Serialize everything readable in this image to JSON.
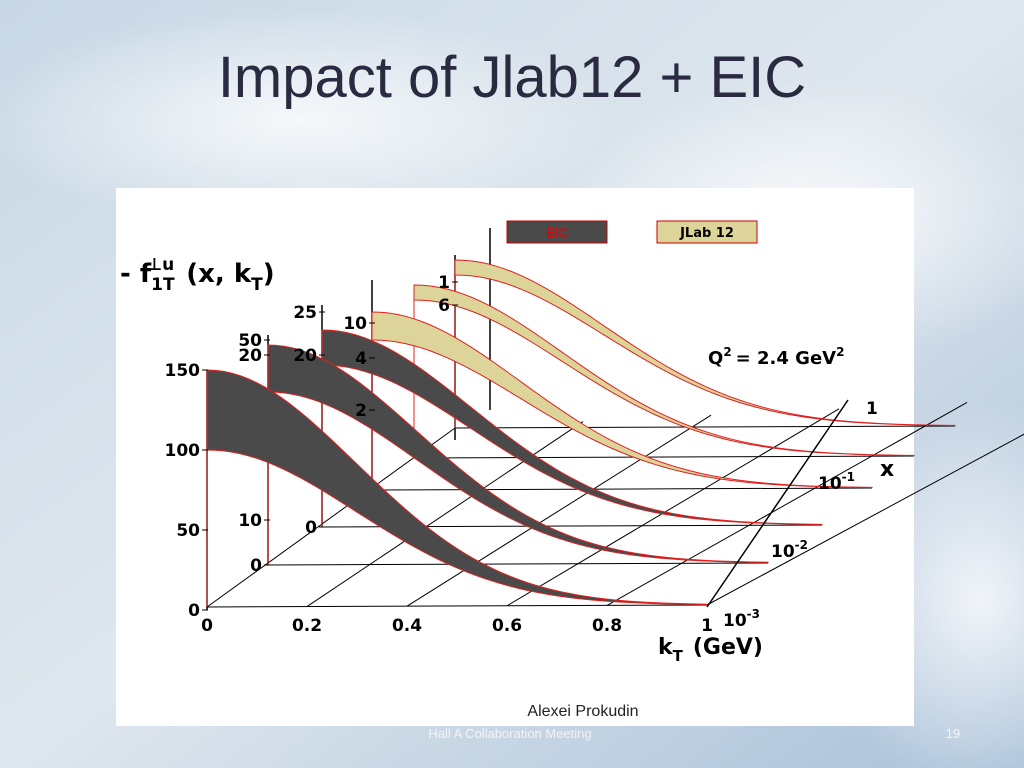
{
  "slide": {
    "title": "Impact of Jlab12 + EIC",
    "footer": "Hall A Collaboration Meeting",
    "page_number": "19"
  },
  "figure": {
    "legend": [
      "EIC",
      "JLab 12"
    ],
    "y_label": {
      "prefix": "- f",
      "sub": "1T",
      "sup": "⊥u",
      "args": "(x, k",
      "args_sub": "T",
      "close": ")"
    },
    "annotation": {
      "q": "Q",
      "q_sup": "2",
      "text": "= 2.4 GeV",
      "unit_sup": "2"
    },
    "panel_ticks": [
      [
        "150",
        "100",
        "50",
        "0"
      ],
      [
        "50",
        "20",
        "10",
        "0"
      ],
      [
        "25",
        "20",
        "0"
      ],
      [
        "10",
        "4",
        "2"
      ],
      [
        "1",
        "6"
      ]
    ],
    "kt_ticks": [
      "0",
      "0.2",
      "0.4",
      "0.6",
      "0.8",
      "1"
    ],
    "kt_label": {
      "k": "k",
      "sub": "T",
      "unit": "(GeV)"
    },
    "x_ticks": [
      {
        "base": "1"
      },
      {
        "base": "10",
        "exp": "-1"
      },
      {
        "base": "10",
        "exp": "-2"
      },
      {
        "base": "10",
        "exp": "-3"
      }
    ],
    "x_label": "x",
    "credit": "Alexei Prokudin"
  }
}
